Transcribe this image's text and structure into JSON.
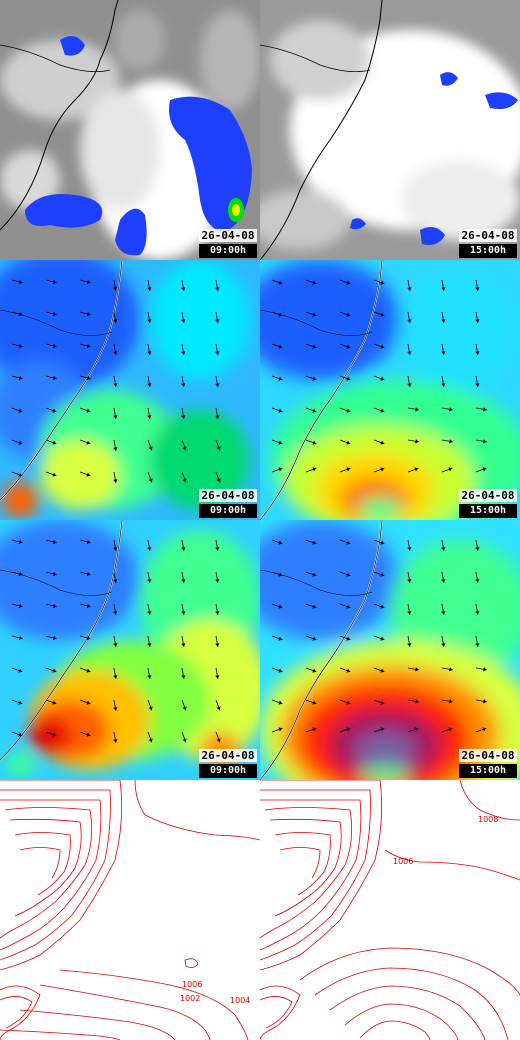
{
  "panels": [
    {
      "date": "26-04-08",
      "time": "09:00h",
      "kind": "satellite"
    },
    {
      "date": "26-04-08",
      "time": "15:00h",
      "kind": "satellite"
    },
    {
      "date": "26-04-08",
      "time": "09:00h",
      "kind": "wind"
    },
    {
      "date": "26-04-08",
      "time": "15:00h",
      "kind": "wind"
    },
    {
      "date": "26-04-08",
      "time": "09:00h",
      "kind": "wind-strong"
    },
    {
      "date": "26-04-08",
      "time": "15:00h",
      "kind": "wind-strong"
    },
    {
      "kind": "pressure"
    },
    {
      "kind": "pressure"
    }
  ],
  "isobar_labels": {
    "left": [
      "1006",
      "1002",
      "1004"
    ],
    "right": [
      "1008",
      "1006"
    ]
  },
  "colors": {
    "isobar": "#e00000",
    "coast": "#000000",
    "wind_arrow": "#000000"
  }
}
